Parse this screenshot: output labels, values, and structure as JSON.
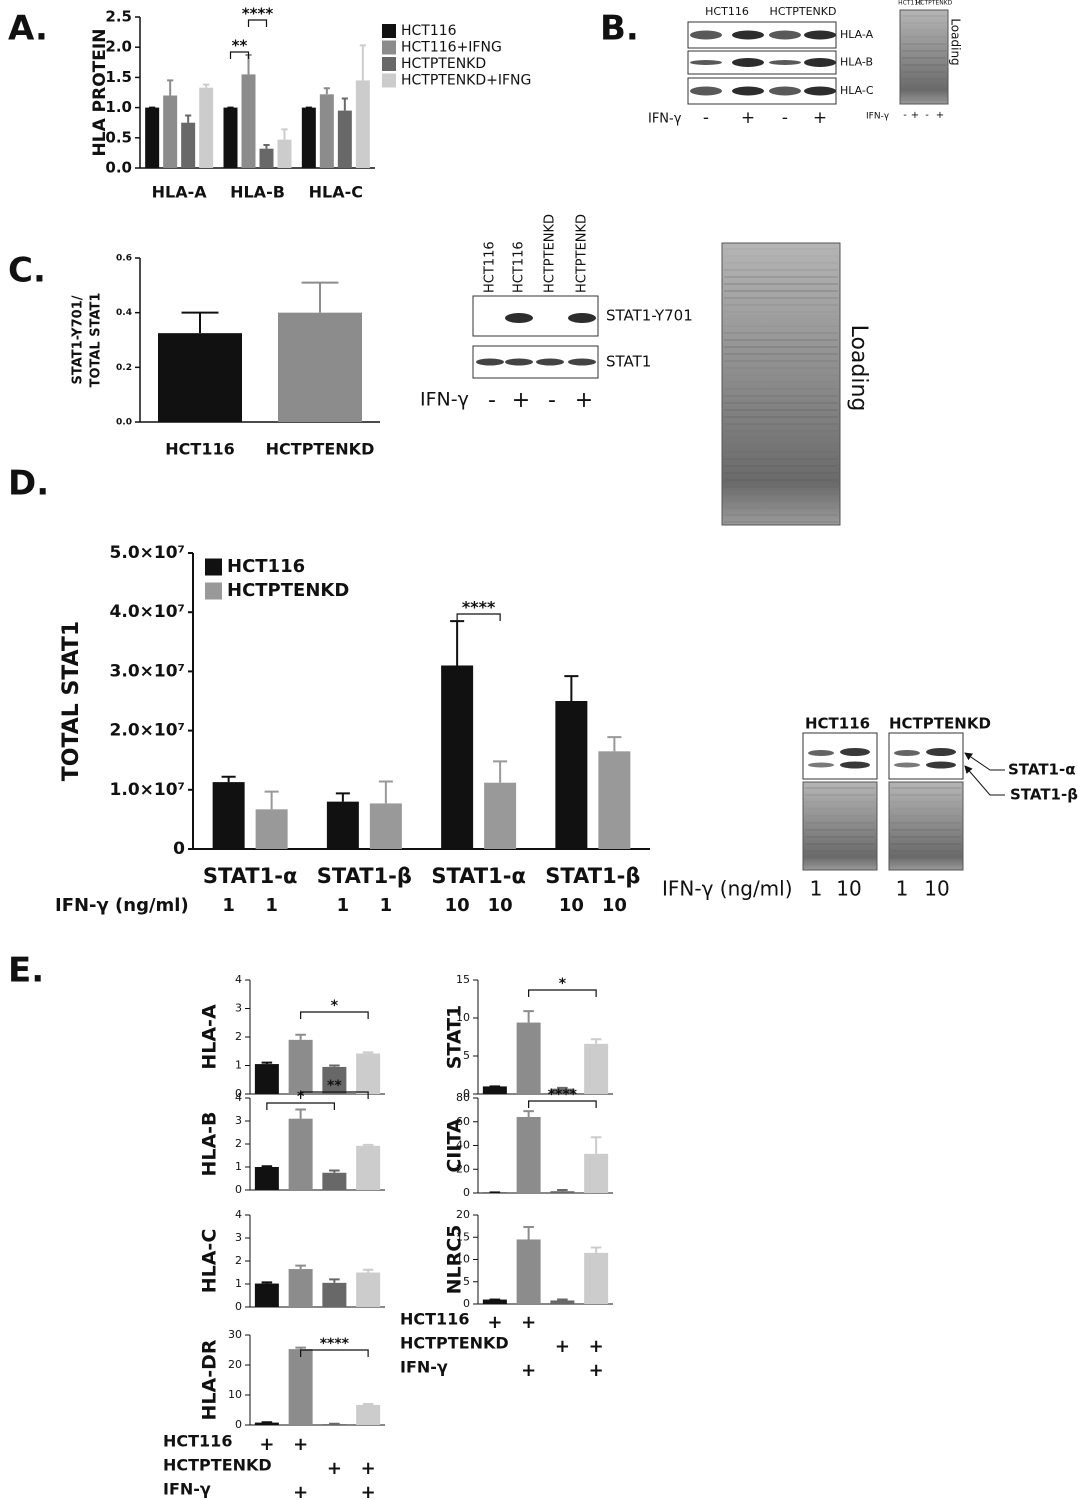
{
  "panel_labels": [
    "A.",
    "B.",
    "C.",
    "D.",
    "E."
  ],
  "chart_data": [
    {
      "type": "bar",
      "ylabel": "HLA PROTEIN",
      "categories": [
        "HLA-A",
        "HLA-B",
        "HLA-C"
      ],
      "series": [
        {
          "name": "HCT116",
          "color": "#111111",
          "values": [
            1.0,
            1.0,
            1.0
          ],
          "errors": [
            0,
            0,
            0
          ]
        },
        {
          "name": "HCT116+IFNG",
          "color": "#8c8c8c",
          "values": [
            1.2,
            1.55,
            1.22
          ],
          "errors": [
            0.25,
            0.32,
            0.1
          ]
        },
        {
          "name": "HCTPTENKD",
          "color": "#686868",
          "values": [
            0.75,
            0.32,
            0.95
          ],
          "errors": [
            0.12,
            0.06,
            0.2
          ]
        },
        {
          "name": "HCTPTENKD+IFNG",
          "color": "#cccccc",
          "values": [
            1.33,
            0.47,
            1.45
          ],
          "errors": [
            0.05,
            0.17,
            0.58
          ]
        }
      ],
      "ylim": [
        0,
        2.5
      ],
      "yticks": [
        {
          "value": 0,
          "label": "0.0"
        },
        0.5,
        {
          "value": 1,
          "label": "1.0"
        },
        1.5,
        {
          "value": 2,
          "label": "2.0"
        },
        2.5
      ],
      "annotations": [
        "**",
        "****"
      ]
    },
    {
      "type": "bar",
      "ylabel": [
        "STAT1-Y701/",
        "TOTAL STAT1"
      ],
      "categories": [
        "HCT116",
        "HCTPTENKD"
      ],
      "values": [
        0.325,
        0.4
      ],
      "errors": [
        0.075,
        0.11
      ],
      "colors": [
        "#111111",
        "#8c8c8c"
      ],
      "ylim": [
        0,
        0.6
      ],
      "yticks": [
        {
          "value": 0,
          "label": "0.0"
        },
        0.2,
        0.4,
        0.6
      ]
    },
    {
      "type": "bar",
      "ylabel": "TOTAL STAT1",
      "categories": [
        "STAT1-α",
        "STAT1-β",
        "STAT1-α",
        "STAT1-β"
      ],
      "series": [
        {
          "name": "HCT116",
          "color": "#111111",
          "values": [
            11300000,
            8000000,
            31000000,
            25000000
          ],
          "errors": [
            900000,
            1400000,
            7500000,
            4200000
          ]
        },
        {
          "name": "HCTPTENKD",
          "color": "#999999",
          "values": [
            6700000,
            7700000,
            11200000,
            16500000
          ],
          "errors": [
            3000000,
            3700000,
            3600000,
            2400000
          ]
        }
      ],
      "ylim": [
        0,
        50000000
      ],
      "yticks": [
        0,
        {
          "value": 10000000,
          "label": "1.0×10⁷"
        },
        {
          "value": 20000000,
          "label": "2.0×10⁷"
        },
        {
          "value": 30000000,
          "label": "3.0×10⁷"
        },
        {
          "value": 40000000,
          "label": "4.0×10⁷"
        },
        {
          "value": 50000000,
          "label": "5.0×10⁷"
        }
      ],
      "annotations": [
        "****"
      ],
      "dose_label": "IFN-γ (ng/ml)",
      "doses": [
        1,
        1,
        1,
        1,
        10,
        10,
        10,
        10
      ]
    },
    {
      "type": "bar",
      "ylabel": "HLA-A",
      "values": [
        1.05,
        1.9,
        0.95,
        1.42
      ],
      "errors": [
        0.05,
        0.18,
        0.05,
        0.04
      ],
      "colors": [
        "#111111",
        "#8c8c8c",
        "#686868",
        "#cccccc"
      ],
      "ylim": [
        0,
        4
      ],
      "yticks": [
        0,
        1,
        2,
        3,
        4
      ],
      "annotations": [
        "*"
      ]
    },
    {
      "type": "bar",
      "ylabel": "HLA-B",
      "values": [
        1.0,
        3.1,
        0.75,
        1.92
      ],
      "errors": [
        0.03,
        0.4,
        0.1,
        0.04
      ],
      "colors": [
        "#111111",
        "#8c8c8c",
        "#686868",
        "#cccccc"
      ],
      "ylim": [
        0,
        4
      ],
      "yticks": [
        0,
        1,
        2,
        3,
        4
      ],
      "annotations": [
        "*",
        "**"
      ]
    },
    {
      "type": "bar",
      "ylabel": "HLA-C",
      "values": [
        1.02,
        1.65,
        1.05,
        1.5
      ],
      "errors": [
        0.05,
        0.15,
        0.15,
        0.12
      ],
      "colors": [
        "#111111",
        "#8c8c8c",
        "#686868",
        "#cccccc"
      ],
      "ylim": [
        0,
        4
      ],
      "yticks": [
        0,
        1,
        2,
        3,
        4
      ]
    },
    {
      "type": "bar",
      "ylabel": "HLA-DR",
      "values": [
        0.8,
        25.3,
        0.3,
        6.7
      ],
      "errors": [
        0.1,
        0.5,
        0.1,
        0.3
      ],
      "colors": [
        "#111111",
        "#8c8c8c",
        "#686868",
        "#cccccc"
      ],
      "ylim": [
        0,
        30
      ],
      "yticks": [
        0,
        10,
        20,
        30
      ],
      "annotations": [
        "****"
      ],
      "conditions": [
        {
          "label": "HCT116",
          "marks": [
            "+",
            "+",
            null,
            null
          ]
        },
        {
          "label": "HCTPTENKD",
          "marks": [
            null,
            null,
            "+",
            "+"
          ]
        },
        {
          "label": "IFN-γ",
          "marks": [
            null,
            "+",
            null,
            "+"
          ]
        }
      ]
    },
    {
      "type": "bar",
      "ylabel": "STAT1",
      "values": [
        1,
        9.4,
        0.7,
        6.6
      ],
      "errors": [
        0,
        1.5,
        0.1,
        0.6
      ],
      "colors": [
        "#111111",
        "#8c8c8c",
        "#686868",
        "#cccccc"
      ],
      "ylim": [
        0,
        15
      ],
      "yticks": [
        0,
        5,
        10,
        15
      ],
      "annotations": [
        "*"
      ]
    },
    {
      "type": "bar",
      "ylabel": "CIITA",
      "values": [
        0.5,
        64,
        1.5,
        33
      ],
      "errors": [
        0,
        5,
        1,
        14
      ],
      "colors": [
        "#111111",
        "#8c8c8c",
        "#686868",
        "#cccccc"
      ],
      "ylim": [
        0,
        80
      ],
      "yticks": [
        0,
        20,
        40,
        60,
        80
      ],
      "annotations": [
        "****"
      ]
    },
    {
      "type": "bar",
      "ylabel": "NLRC5",
      "values": [
        1,
        14.5,
        0.8,
        11.5
      ],
      "errors": [
        0,
        2.8,
        0.2,
        1.2
      ],
      "colors": [
        "#111111",
        "#8c8c8c",
        "#686868",
        "#cccccc"
      ],
      "ylim": [
        0,
        20
      ],
      "yticks": [
        0,
        5,
        10,
        15,
        20
      ],
      "conditions": [
        {
          "label": "HCT116",
          "marks": [
            "+",
            "+",
            null,
            null
          ]
        },
        {
          "label": "HCTPTENKD",
          "marks": [
            null,
            null,
            "+",
            "+"
          ]
        },
        {
          "label": "IFN-γ",
          "marks": [
            null,
            "+",
            null,
            "+"
          ]
        }
      ]
    }
  ],
  "blots": {
    "B": {
      "groups": [
        "HCT116",
        "HCTPTENKD"
      ],
      "bands": [
        "HLA-A",
        "HLA-B",
        "HLA-C"
      ],
      "treatment": "IFN-γ",
      "lanes": [
        "-",
        "+",
        "-",
        "+"
      ],
      "mini_groups": [
        "HCT116",
        "HCTPTENKD"
      ],
      "loading": "Loading",
      "mini_treatment": "IFN-γ",
      "mini_lanes": [
        "-",
        "+",
        "-",
        "+"
      ]
    },
    "C": {
      "lanes": [
        "HCT116",
        "HCT116",
        "HCTPTENKD",
        "HCTPTENKD"
      ],
      "bands": [
        "STAT1-Y701",
        "STAT1"
      ],
      "treatment": "IFN-γ",
      "signs": [
        "-",
        "+",
        "-",
        "+"
      ],
      "loading": "Loading"
    },
    "D": {
      "groups": [
        "HCT116",
        "HCTPTENKD"
      ],
      "bands": [
        "STAT1-α",
        "STAT1-β"
      ],
      "treatment": "IFN-γ (ng/ml)",
      "doses": [
        1,
        10,
        1,
        10
      ]
    }
  }
}
